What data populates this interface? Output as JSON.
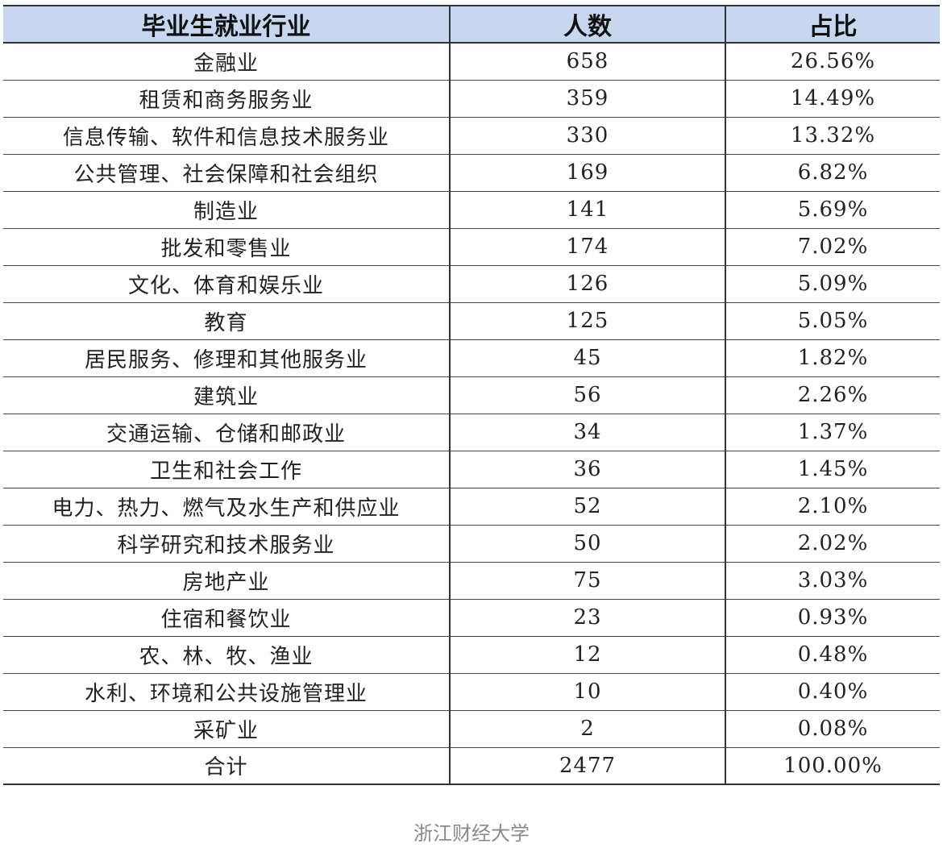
{
  "table": {
    "headers": [
      "毕业生就业行业",
      "人数",
      "占比"
    ],
    "rows": [
      [
        "金融业",
        "658",
        "26.56%"
      ],
      [
        "租赁和商务服务业",
        "359",
        "14.49%"
      ],
      [
        "信息传输、软件和信息技术服务业",
        "330",
        "13.32%"
      ],
      [
        "公共管理、社会保障和社会组织",
        "169",
        "6.82%"
      ],
      [
        "制造业",
        "141",
        "5.69%"
      ],
      [
        "批发和零售业",
        "174",
        "7.02%"
      ],
      [
        "文化、体育和娱乐业",
        "126",
        "5.09%"
      ],
      [
        "教育",
        "125",
        "5.05%"
      ],
      [
        "居民服务、修理和其他服务业",
        "45",
        "1.82%"
      ],
      [
        "建筑业",
        "56",
        "2.26%"
      ],
      [
        "交通运输、仓储和邮政业",
        "34",
        "1.37%"
      ],
      [
        "卫生和社会工作",
        "36",
        "1.45%"
      ],
      [
        "电力、热力、燃气及水生产和供应业",
        "52",
        "2.10%"
      ],
      [
        "科学研究和技术服务业",
        "50",
        "2.02%"
      ],
      [
        "房地产业",
        "75",
        "3.03%"
      ],
      [
        "住宿和餐饮业",
        "23",
        "0.93%"
      ],
      [
        "农、林、牧、渔业",
        "12",
        "0.48%"
      ],
      [
        "水利、环境和公共设施管理业",
        "10",
        "0.40%"
      ],
      [
        "采矿业",
        "2",
        "0.08%"
      ],
      [
        "合计",
        "2477",
        "100.00%"
      ]
    ]
  },
  "footer": {
    "source": "浙江财经大学"
  },
  "colors": {
    "header_bg": "#c6d7ef",
    "border": "#333333",
    "footer_text": "#8a8a8a"
  }
}
